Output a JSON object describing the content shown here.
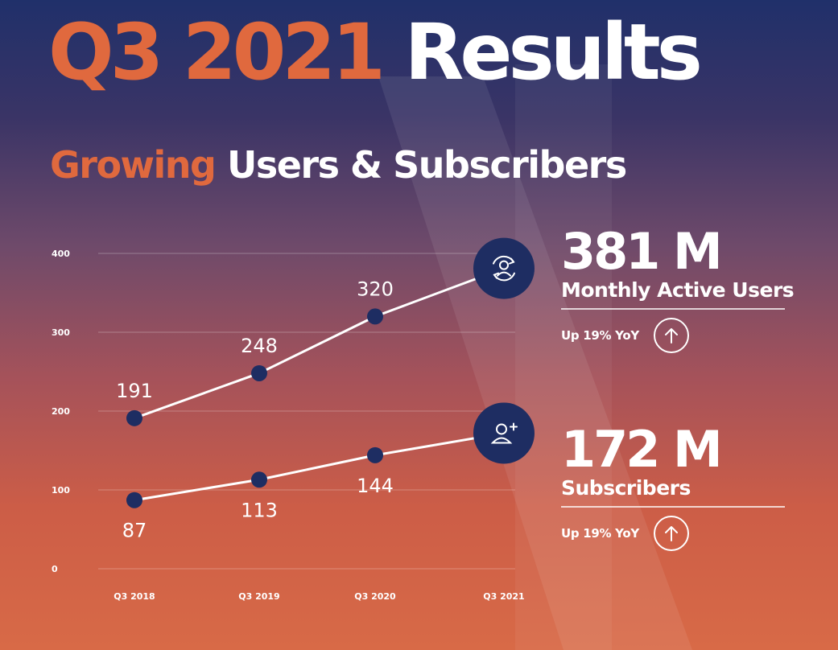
{
  "header": {
    "title_accent": "Q3 2021",
    "title_main": "Results",
    "subtitle_accent": "Growing",
    "subtitle_main": "Users & Subscribers"
  },
  "colors": {
    "accent": "#e0693e",
    "marker": "#1e2d62",
    "line": "#ffffff"
  },
  "chart_data": {
    "type": "line",
    "categories": [
      "Q3 2018",
      "Q3 2019",
      "Q3 2020",
      "Q3 2021"
    ],
    "yticks": [
      0,
      100,
      200,
      300,
      400
    ],
    "ylim": [
      0,
      400
    ],
    "grid": true,
    "series": [
      {
        "key": "mau",
        "values": [
          191,
          248,
          320,
          381
        ],
        "point_labels": [
          "191",
          "248",
          "320",
          ""
        ],
        "label_side": "above",
        "end_icon": "user-refresh-icon"
      },
      {
        "key": "subs",
        "values": [
          87,
          113,
          144,
          172
        ],
        "point_labels": [
          "87",
          "113",
          "144",
          ""
        ],
        "label_side": "below",
        "end_icon": "user-add-icon"
      }
    ]
  },
  "stats": {
    "mau": {
      "value": "381 M",
      "label": "Monthly Active Users",
      "yoy": "Up 19% YoY",
      "yoy_icon": "arrow-up-icon"
    },
    "subs": {
      "value": "172 M",
      "label": "Subscribers",
      "yoy": "Up 19% YoY",
      "yoy_icon": "arrow-up-icon"
    }
  }
}
